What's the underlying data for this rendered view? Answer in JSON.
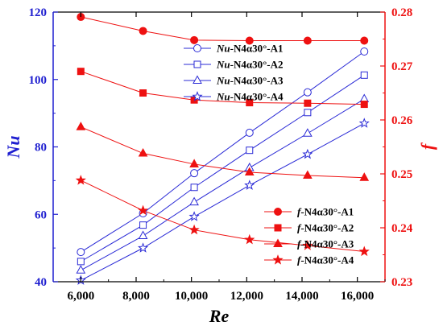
{
  "chart_data": {
    "type": "line",
    "x": [
      6000,
      8250,
      10100,
      12100,
      14200,
      16250
    ],
    "xlabel": "Re",
    "ylabel_left": "Nu",
    "ylabel_right": "f",
    "x_ticks": [
      "6,000",
      "8,000",
      "10,000",
      "12,000",
      "14,000",
      "16,000"
    ],
    "x_tick_values": [
      6000,
      8000,
      10000,
      12000,
      14000,
      16000
    ],
    "y_left_ticks": [
      "40",
      "60",
      "80",
      "100",
      "120"
    ],
    "y_left_tick_values": [
      40,
      60,
      80,
      100,
      120
    ],
    "y_right_ticks": [
      "0.23",
      "0.24",
      "0.25",
      "0.26",
      "0.27",
      "0.28"
    ],
    "y_right_tick_values": [
      0.23,
      0.24,
      0.25,
      0.26,
      0.27,
      0.28
    ],
    "xlim": [
      5000,
      17000
    ],
    "ylim_left": [
      40,
      120
    ],
    "ylim_right": [
      0.23,
      0.28
    ],
    "grid": false,
    "legend_placement": "top-right and bottom-right",
    "left_axis_color": "#1f1fd0",
    "right_axis_color": "#ee1111",
    "series": [
      {
        "name_prefix": "Nu",
        "name_suffix": "-N4α30°-A1",
        "axis": "left",
        "marker": "circle",
        "color": "#2b2bd6",
        "values": [
          48.8,
          60.3,
          72.2,
          84.2,
          96.2,
          108.3
        ]
      },
      {
        "name_prefix": "Nu",
        "name_suffix": "-N4α30°-A2",
        "axis": "left",
        "marker": "square",
        "color": "#2b2bd6",
        "values": [
          46.0,
          56.8,
          68.0,
          79.0,
          90.2,
          101.3
        ]
      },
      {
        "name_prefix": "Nu",
        "name_suffix": "-N4α30°-A3",
        "axis": "left",
        "marker": "triangle",
        "color": "#2b2bd6",
        "values": [
          43.4,
          53.6,
          63.6,
          73.8,
          84.0,
          94.2
        ]
      },
      {
        "name_prefix": "Nu",
        "name_suffix": "-N4α30°-A4",
        "axis": "left",
        "marker": "star",
        "color": "#2b2bd6",
        "values": [
          40.4,
          50.0,
          59.3,
          68.6,
          77.8,
          87.0
        ]
      },
      {
        "name_prefix": "f",
        "name_suffix": "-N4α30°-A1",
        "axis": "right",
        "marker": "circle",
        "color": "#ee1111",
        "values": [
          0.2791,
          0.2765,
          0.2748,
          0.2747,
          0.2747,
          0.2747
        ]
      },
      {
        "name_prefix": "f",
        "name_suffix": "-N4α30°-A2",
        "axis": "right",
        "marker": "square",
        "color": "#ee1111",
        "values": [
          0.269,
          0.265,
          0.2637,
          0.2632,
          0.2631,
          0.2629
        ]
      },
      {
        "name_prefix": "f",
        "name_suffix": "-N4α30°-A3",
        "axis": "right",
        "marker": "triangle",
        "color": "#ee1111",
        "values": [
          0.2587,
          0.2538,
          0.2518,
          0.2503,
          0.2497,
          0.2493
        ]
      },
      {
        "name_prefix": "f",
        "name_suffix": "-N4α30°-A4",
        "axis": "right",
        "marker": "star",
        "color": "#ee1111",
        "values": [
          0.2488,
          0.2432,
          0.2396,
          0.2378,
          0.2367,
          0.2356
        ]
      }
    ]
  }
}
